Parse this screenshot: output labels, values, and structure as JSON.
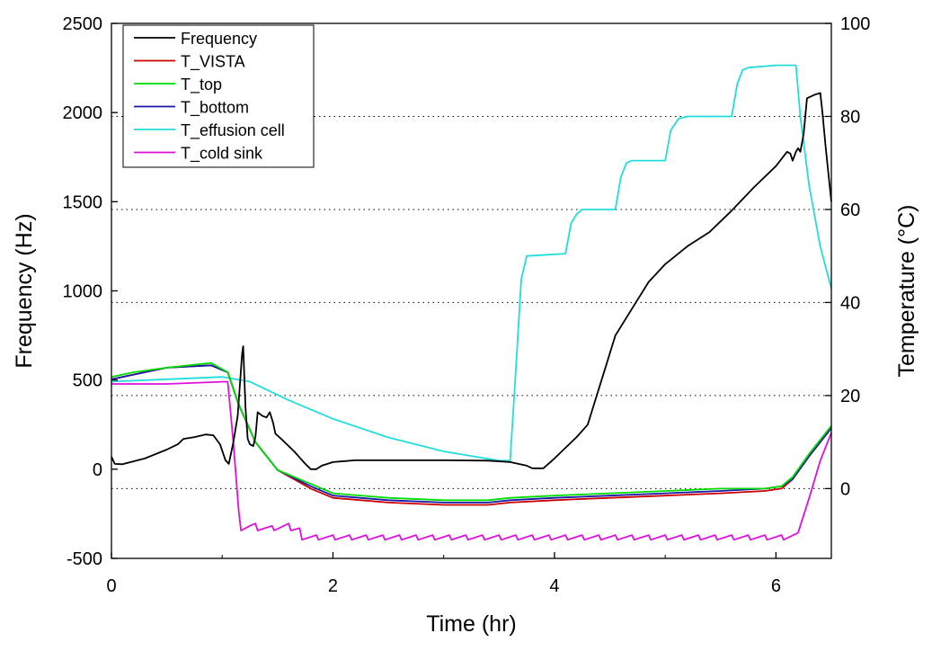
{
  "chart_data": {
    "type": "line",
    "xlabel": "Time (hr)",
    "ylabel_left": "Frequency (Hz)",
    "ylabel_right": "Temperature (°C)",
    "xlim": [
      0,
      6.5
    ],
    "ylim_left": [
      -500,
      2500
    ],
    "ylim_right": [
      -15,
      100
    ],
    "xticks": [
      "0",
      "2",
      "4",
      "6"
    ],
    "yticks_left": [
      "-500",
      "0",
      "500",
      "1000",
      "1500",
      "2000",
      "2500"
    ],
    "yticks_right": [
      "0",
      "20",
      "40",
      "60",
      "80",
      "100"
    ],
    "gridlines_right": [
      0,
      20,
      40,
      60,
      80
    ],
    "grid": "horizontal dotted at right-axis ticks",
    "legend_position": "top-left",
    "series": [
      {
        "name": "Frequency",
        "axis": "left",
        "color": "#000000",
        "points": [
          [
            0,
            70
          ],
          [
            0.03,
            30
          ],
          [
            0.1,
            28
          ],
          [
            0.3,
            60
          ],
          [
            0.5,
            110
          ],
          [
            0.6,
            140
          ],
          [
            0.65,
            170
          ],
          [
            0.75,
            180
          ],
          [
            0.85,
            195
          ],
          [
            0.92,
            190
          ],
          [
            0.98,
            140
          ],
          [
            1.03,
            50
          ],
          [
            1.06,
            30
          ],
          [
            1.1,
            150
          ],
          [
            1.14,
            300
          ],
          [
            1.18,
            650
          ],
          [
            1.19,
            690
          ],
          [
            1.21,
            350
          ],
          [
            1.23,
            170
          ],
          [
            1.25,
            140
          ],
          [
            1.28,
            130
          ],
          [
            1.3,
            180
          ],
          [
            1.32,
            320
          ],
          [
            1.36,
            300
          ],
          [
            1.4,
            290
          ],
          [
            1.43,
            320
          ],
          [
            1.46,
            260
          ],
          [
            1.48,
            200
          ],
          [
            1.55,
            160
          ],
          [
            1.65,
            100
          ],
          [
            1.75,
            30
          ],
          [
            1.8,
            0
          ],
          [
            1.85,
            0
          ],
          [
            1.9,
            20
          ],
          [
            2.0,
            40
          ],
          [
            2.2,
            50
          ],
          [
            2.6,
            50
          ],
          [
            3.0,
            50
          ],
          [
            3.4,
            48
          ],
          [
            3.6,
            40
          ],
          [
            3.75,
            20
          ],
          [
            3.8,
            5
          ],
          [
            3.9,
            5
          ],
          [
            4.0,
            60
          ],
          [
            4.1,
            120
          ],
          [
            4.2,
            180
          ],
          [
            4.3,
            250
          ],
          [
            4.35,
            350
          ],
          [
            4.45,
            550
          ],
          [
            4.55,
            750
          ],
          [
            4.7,
            900
          ],
          [
            4.85,
            1050
          ],
          [
            5.0,
            1150
          ],
          [
            5.2,
            1250
          ],
          [
            5.4,
            1330
          ],
          [
            5.6,
            1450
          ],
          [
            5.8,
            1580
          ],
          [
            6.0,
            1700
          ],
          [
            6.1,
            1780
          ],
          [
            6.13,
            1770
          ],
          [
            6.15,
            1730
          ],
          [
            6.18,
            1780
          ],
          [
            6.2,
            1800
          ],
          [
            6.22,
            1780
          ],
          [
            6.25,
            1880
          ],
          [
            6.28,
            2080
          ],
          [
            6.35,
            2100
          ],
          [
            6.4,
            2110
          ],
          [
            6.42,
            2000
          ],
          [
            6.45,
            1800
          ],
          [
            6.5,
            1500
          ]
        ]
      },
      {
        "name": "T_VISTA",
        "axis": "right",
        "color": "#cc0000",
        "points": [
          [
            0,
            23.5
          ],
          [
            0.2,
            24.5
          ],
          [
            0.5,
            26
          ],
          [
            0.9,
            26.5
          ],
          [
            1.05,
            25
          ],
          [
            1.15,
            18
          ],
          [
            1.3,
            10
          ],
          [
            1.5,
            4
          ],
          [
            1.8,
            0
          ],
          [
            2.0,
            -2
          ],
          [
            2.5,
            -3
          ],
          [
            3.0,
            -3.5
          ],
          [
            3.4,
            -3.5
          ],
          [
            3.6,
            -3
          ],
          [
            4.0,
            -2.5
          ],
          [
            4.5,
            -2
          ],
          [
            5.0,
            -1.5
          ],
          [
            5.5,
            -1
          ],
          [
            5.9,
            -0.5
          ],
          [
            6.05,
            0
          ],
          [
            6.15,
            2
          ],
          [
            6.3,
            7
          ],
          [
            6.5,
            13
          ]
        ]
      },
      {
        "name": "T_top",
        "axis": "right",
        "color": "#00dd00",
        "points": [
          [
            0,
            24
          ],
          [
            0.2,
            25
          ],
          [
            0.5,
            26
          ],
          [
            0.9,
            27
          ],
          [
            1.05,
            25
          ],
          [
            1.15,
            18
          ],
          [
            1.3,
            10
          ],
          [
            1.5,
            4
          ],
          [
            1.8,
            1
          ],
          [
            2.0,
            -1
          ],
          [
            2.5,
            -2
          ],
          [
            3.0,
            -2.5
          ],
          [
            3.4,
            -2.5
          ],
          [
            3.6,
            -2
          ],
          [
            4.0,
            -1.5
          ],
          [
            4.5,
            -1
          ],
          [
            5.0,
            -0.5
          ],
          [
            5.5,
            0
          ],
          [
            5.9,
            0
          ],
          [
            6.05,
            0.5
          ],
          [
            6.15,
            2.5
          ],
          [
            6.3,
            7.5
          ],
          [
            6.5,
            13.5
          ]
        ]
      },
      {
        "name": "T_bottom",
        "axis": "right",
        "color": "#1a1aaa",
        "points": [
          [
            0,
            23.5
          ],
          [
            0.2,
            24.5
          ],
          [
            0.5,
            26
          ],
          [
            0.9,
            26.5
          ],
          [
            1.05,
            25
          ],
          [
            1.15,
            18
          ],
          [
            1.3,
            10
          ],
          [
            1.5,
            4
          ],
          [
            1.8,
            0.5
          ],
          [
            2.0,
            -1.5
          ],
          [
            2.5,
            -2.5
          ],
          [
            3.0,
            -3
          ],
          [
            3.4,
            -3
          ],
          [
            3.6,
            -2.5
          ],
          [
            4.0,
            -2
          ],
          [
            4.5,
            -1.5
          ],
          [
            5.0,
            -1
          ],
          [
            5.5,
            -0.5
          ],
          [
            5.9,
            0
          ],
          [
            6.05,
            0.5
          ],
          [
            6.15,
            2
          ],
          [
            6.3,
            7
          ],
          [
            6.5,
            13
          ]
        ]
      },
      {
        "name": "T_effusion cell",
        "axis": "right",
        "color": "#22dddd",
        "points": [
          [
            0,
            23
          ],
          [
            0.5,
            23.5
          ],
          [
            1.0,
            24
          ],
          [
            1.25,
            23
          ],
          [
            1.6,
            19
          ],
          [
            2.0,
            15
          ],
          [
            2.5,
            11
          ],
          [
            3.0,
            8
          ],
          [
            3.5,
            6
          ],
          [
            3.6,
            6
          ],
          [
            3.65,
            25
          ],
          [
            3.7,
            45
          ],
          [
            3.75,
            50
          ],
          [
            4.1,
            50.5
          ],
          [
            4.15,
            57
          ],
          [
            4.2,
            59
          ],
          [
            4.25,
            60
          ],
          [
            4.55,
            60
          ],
          [
            4.6,
            67
          ],
          [
            4.65,
            70
          ],
          [
            4.7,
            70.5
          ],
          [
            5.0,
            70.5
          ],
          [
            5.05,
            77
          ],
          [
            5.12,
            79.5
          ],
          [
            5.2,
            80
          ],
          [
            5.6,
            80
          ],
          [
            5.65,
            87
          ],
          [
            5.7,
            90
          ],
          [
            5.75,
            90.5
          ],
          [
            6.0,
            91
          ],
          [
            6.18,
            91
          ],
          [
            6.22,
            80
          ],
          [
            6.3,
            65
          ],
          [
            6.4,
            52
          ],
          [
            6.5,
            43
          ]
        ]
      },
      {
        "name": "T_cold sink",
        "axis": "right",
        "color": "#dd11dd",
        "points": [
          [
            0,
            22.5
          ],
          [
            0.5,
            22.5
          ],
          [
            1.05,
            23
          ],
          [
            1.1,
            10
          ],
          [
            1.15,
            -5
          ],
          [
            1.17,
            -9
          ],
          [
            1.25,
            -8
          ],
          [
            1.3,
            -7.5
          ],
          [
            1.32,
            -9
          ],
          [
            1.45,
            -8
          ],
          [
            1.47,
            -9
          ],
          [
            1.6,
            -7.5
          ],
          [
            1.62,
            -9
          ],
          [
            1.7,
            -8.5
          ],
          [
            1.72,
            -11
          ],
          [
            1.85,
            -10
          ],
          [
            1.87,
            -11
          ],
          [
            2.0,
            -10
          ],
          [
            2.02,
            -11
          ],
          [
            2.15,
            -10
          ],
          [
            2.17,
            -11
          ],
          [
            2.3,
            -10
          ],
          [
            2.32,
            -11
          ],
          [
            2.45,
            -10
          ],
          [
            2.47,
            -11
          ],
          [
            2.6,
            -10
          ],
          [
            2.62,
            -11
          ],
          [
            2.75,
            -10
          ],
          [
            2.77,
            -11
          ],
          [
            2.9,
            -10
          ],
          [
            2.92,
            -11
          ],
          [
            3.05,
            -10
          ],
          [
            3.07,
            -11
          ],
          [
            3.2,
            -10
          ],
          [
            3.22,
            -11
          ],
          [
            3.35,
            -10
          ],
          [
            3.37,
            -11
          ],
          [
            3.5,
            -10
          ],
          [
            3.52,
            -11
          ],
          [
            3.65,
            -10
          ],
          [
            3.67,
            -11
          ],
          [
            3.8,
            -10
          ],
          [
            3.82,
            -11
          ],
          [
            3.95,
            -10
          ],
          [
            3.97,
            -11
          ],
          [
            4.1,
            -10
          ],
          [
            4.12,
            -11
          ],
          [
            4.25,
            -10
          ],
          [
            4.27,
            -11
          ],
          [
            4.4,
            -10
          ],
          [
            4.42,
            -11
          ],
          [
            4.55,
            -10
          ],
          [
            4.57,
            -11
          ],
          [
            4.7,
            -10
          ],
          [
            4.72,
            -11
          ],
          [
            4.85,
            -10
          ],
          [
            4.87,
            -11
          ],
          [
            5.0,
            -10
          ],
          [
            5.02,
            -11
          ],
          [
            5.15,
            -10
          ],
          [
            5.17,
            -11
          ],
          [
            5.3,
            -10
          ],
          [
            5.32,
            -11
          ],
          [
            5.45,
            -10
          ],
          [
            5.47,
            -11
          ],
          [
            5.6,
            -10
          ],
          [
            5.62,
            -11
          ],
          [
            5.75,
            -10
          ],
          [
            5.77,
            -11
          ],
          [
            5.9,
            -10
          ],
          [
            5.92,
            -11
          ],
          [
            6.05,
            -10
          ],
          [
            6.07,
            -11
          ],
          [
            6.2,
            -9.5
          ],
          [
            6.3,
            -2
          ],
          [
            6.4,
            6
          ],
          [
            6.5,
            12
          ]
        ]
      }
    ]
  }
}
